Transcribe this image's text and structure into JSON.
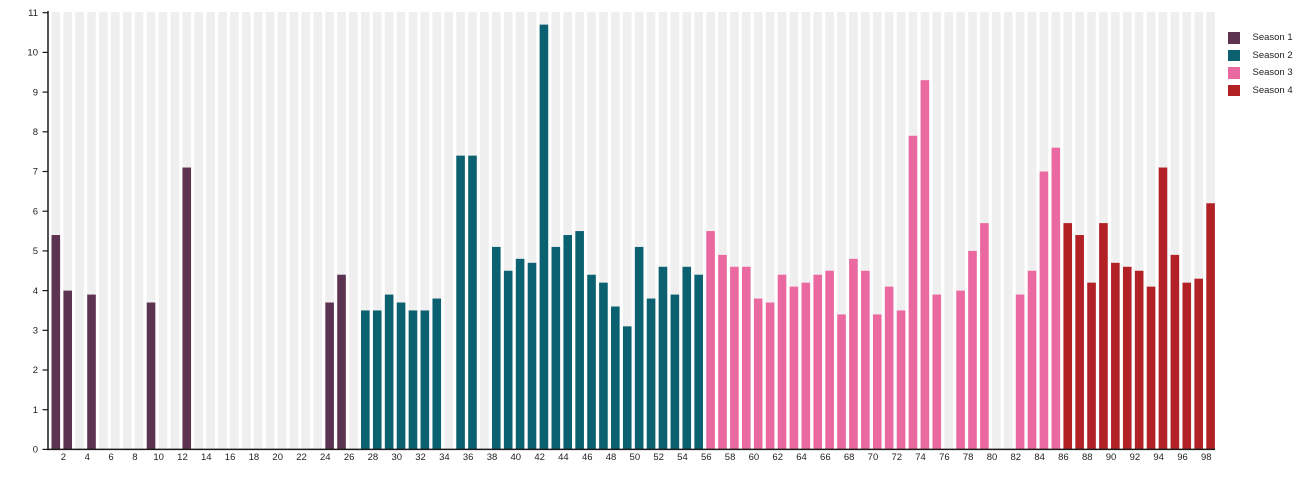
{
  "chart_data": {
    "type": "bar",
    "title": "",
    "xlabel": "",
    "ylabel": "",
    "ylim": [
      0,
      11
    ],
    "x_range": [
      1,
      98
    ],
    "grid": false,
    "legend_position": "top-right-outside",
    "background_stripes": true,
    "y_tick_labels": [
      "0",
      "1",
      "2",
      "3",
      "4",
      "5",
      "6",
      "7",
      "8",
      "9",
      "10",
      "11"
    ],
    "x_tick_labels": [
      "2",
      "4",
      "6",
      "8",
      "10",
      "12",
      "14",
      "16",
      "18",
      "20",
      "22",
      "24",
      "26",
      "28",
      "30",
      "32",
      "34",
      "36",
      "38",
      "40",
      "42",
      "44",
      "46",
      "48",
      "50",
      "52",
      "54",
      "56",
      "58",
      "60",
      "62",
      "64",
      "66",
      "68",
      "70",
      "72",
      "74",
      "76",
      "78",
      "80",
      "82",
      "84",
      "86",
      "88",
      "90",
      "92",
      "94",
      "96",
      "98"
    ],
    "series": [
      {
        "name": "Season 1",
        "color": "#5c3452",
        "points": [
          [
            1,
            5.4
          ],
          [
            2,
            4.0
          ],
          [
            4,
            3.9
          ],
          [
            9,
            3.7
          ],
          [
            12,
            7.1
          ],
          [
            24,
            3.7
          ],
          [
            25,
            4.4
          ]
        ]
      },
      {
        "name": "Season 2",
        "color": "#0b616f",
        "points": [
          [
            27,
            3.5
          ],
          [
            28,
            3.5
          ],
          [
            29,
            3.9
          ],
          [
            30,
            3.7
          ],
          [
            31,
            3.5
          ],
          [
            32,
            3.5
          ],
          [
            33,
            3.8
          ],
          [
            35,
            7.4
          ],
          [
            36,
            7.4
          ],
          [
            38,
            5.1
          ],
          [
            39,
            4.5
          ],
          [
            40,
            4.8
          ],
          [
            41,
            4.7
          ],
          [
            42,
            10.7
          ],
          [
            43,
            5.1
          ],
          [
            44,
            5.4
          ],
          [
            45,
            5.5
          ],
          [
            46,
            4.4
          ],
          [
            47,
            4.2
          ],
          [
            48,
            3.6
          ],
          [
            49,
            3.1
          ],
          [
            50,
            5.1
          ],
          [
            51,
            3.8
          ],
          [
            52,
            4.6
          ],
          [
            53,
            3.9
          ],
          [
            54,
            4.6
          ],
          [
            55,
            4.4
          ]
        ]
      },
      {
        "name": "Season 3",
        "color": "#eb69a1",
        "points": [
          [
            56,
            5.5
          ],
          [
            57,
            4.9
          ],
          [
            58,
            4.6
          ],
          [
            59,
            4.6
          ],
          [
            60,
            3.8
          ],
          [
            61,
            3.7
          ],
          [
            62,
            4.4
          ],
          [
            63,
            4.1
          ],
          [
            64,
            4.2
          ],
          [
            65,
            4.4
          ],
          [
            66,
            4.5
          ],
          [
            67,
            3.4
          ],
          [
            68,
            4.8
          ],
          [
            69,
            4.5
          ],
          [
            70,
            3.4
          ],
          [
            71,
            4.1
          ],
          [
            72,
            3.5
          ],
          [
            73,
            7.9
          ],
          [
            74,
            9.3
          ],
          [
            75,
            3.9
          ],
          [
            77,
            4.0
          ],
          [
            78,
            5.0
          ],
          [
            79,
            5.7
          ],
          [
            82,
            3.9
          ],
          [
            83,
            4.5
          ],
          [
            84,
            7.0
          ],
          [
            85,
            7.6
          ]
        ]
      },
      {
        "name": "Season 4",
        "color": "#b22126",
        "points": [
          [
            86,
            5.7
          ],
          [
            87,
            5.4
          ],
          [
            88,
            4.2
          ],
          [
            89,
            5.7
          ],
          [
            90,
            4.7
          ],
          [
            91,
            4.6
          ],
          [
            92,
            4.5
          ],
          [
            93,
            4.1
          ],
          [
            94,
            7.1
          ],
          [
            95,
            4.9
          ],
          [
            96,
            4.2
          ],
          [
            97,
            4.3
          ],
          [
            98,
            6.2
          ]
        ]
      }
    ]
  },
  "legend": {
    "items": [
      {
        "label": "Season 1",
        "color": "#5c3452"
      },
      {
        "label": "Season 2",
        "color": "#0b616f"
      },
      {
        "label": "Season 3",
        "color": "#eb69a1"
      },
      {
        "label": "Season 4",
        "color": "#b22126"
      }
    ]
  },
  "colors": {
    "stripe": "#f0eff0",
    "axis": "#1a1a1a",
    "label": "#222222",
    "background": "#ffffff"
  }
}
